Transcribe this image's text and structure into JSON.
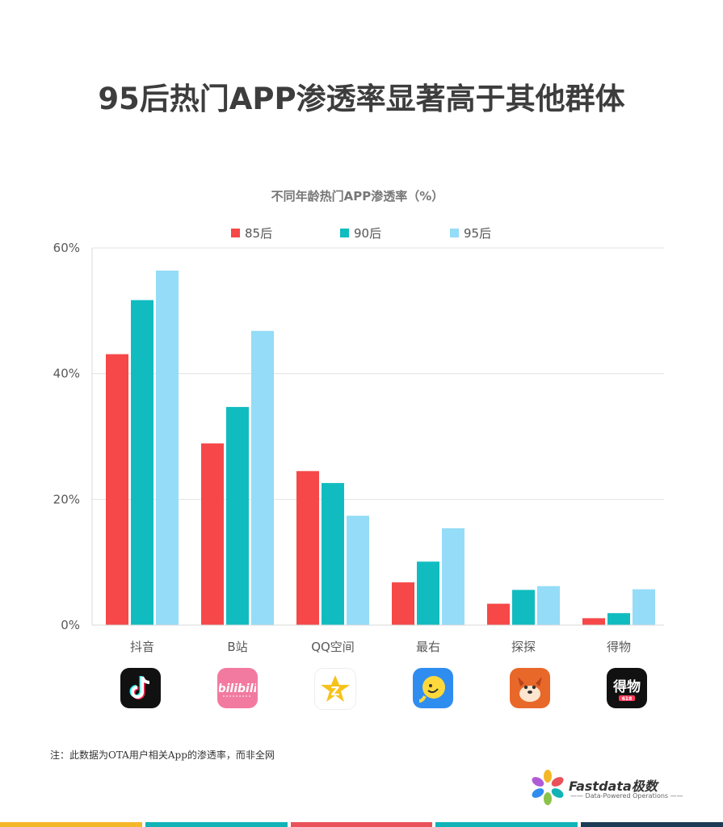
{
  "page_title": "95后热门APP渗透率显著高于其他群体",
  "footnote": "注：此数据为OTA用户相关App的渗透率，而非全网",
  "brand": {
    "name": "Fastdata极数",
    "tagline": "Data-Powered Operations"
  },
  "colors": {
    "s85": "#f64848",
    "s90": "#10bcc0",
    "s95": "#94dcf7",
    "stripe_colors": [
      "#f4b728",
      "#11b3b7",
      "#e9525a",
      "#11b3b7",
      "#1d3b55"
    ]
  },
  "app_icons": [
    {
      "app": "抖音",
      "icon": "douyin-icon"
    },
    {
      "app": "B站",
      "icon": "bilibili-icon"
    },
    {
      "app": "QQ空间",
      "icon": "qzone-icon"
    },
    {
      "app": "最右",
      "icon": "zuiyou-icon"
    },
    {
      "app": "探探",
      "icon": "tantan-icon"
    },
    {
      "app": "得物",
      "icon": "dewu-icon"
    }
  ],
  "chart_data": {
    "type": "bar",
    "title": "不同年龄热门APP渗透率（%）",
    "categories": [
      "抖音",
      "B站",
      "QQ空间",
      "最右",
      "探探",
      "得物"
    ],
    "series": [
      {
        "name": "85后",
        "values": [
          43.1,
          28.9,
          24.5,
          6.8,
          3.4,
          1.1
        ]
      },
      {
        "name": "90后",
        "values": [
          51.7,
          34.7,
          22.6,
          10.1,
          5.6,
          1.9
        ]
      },
      {
        "name": "95后",
        "values": [
          56.4,
          46.8,
          17.4,
          15.4,
          6.2,
          5.7
        ]
      }
    ],
    "yticks": [
      "0%",
      "20%",
      "40%",
      "60%"
    ],
    "ylim": [
      0,
      60
    ],
    "grid": true,
    "legend_position": "top"
  }
}
